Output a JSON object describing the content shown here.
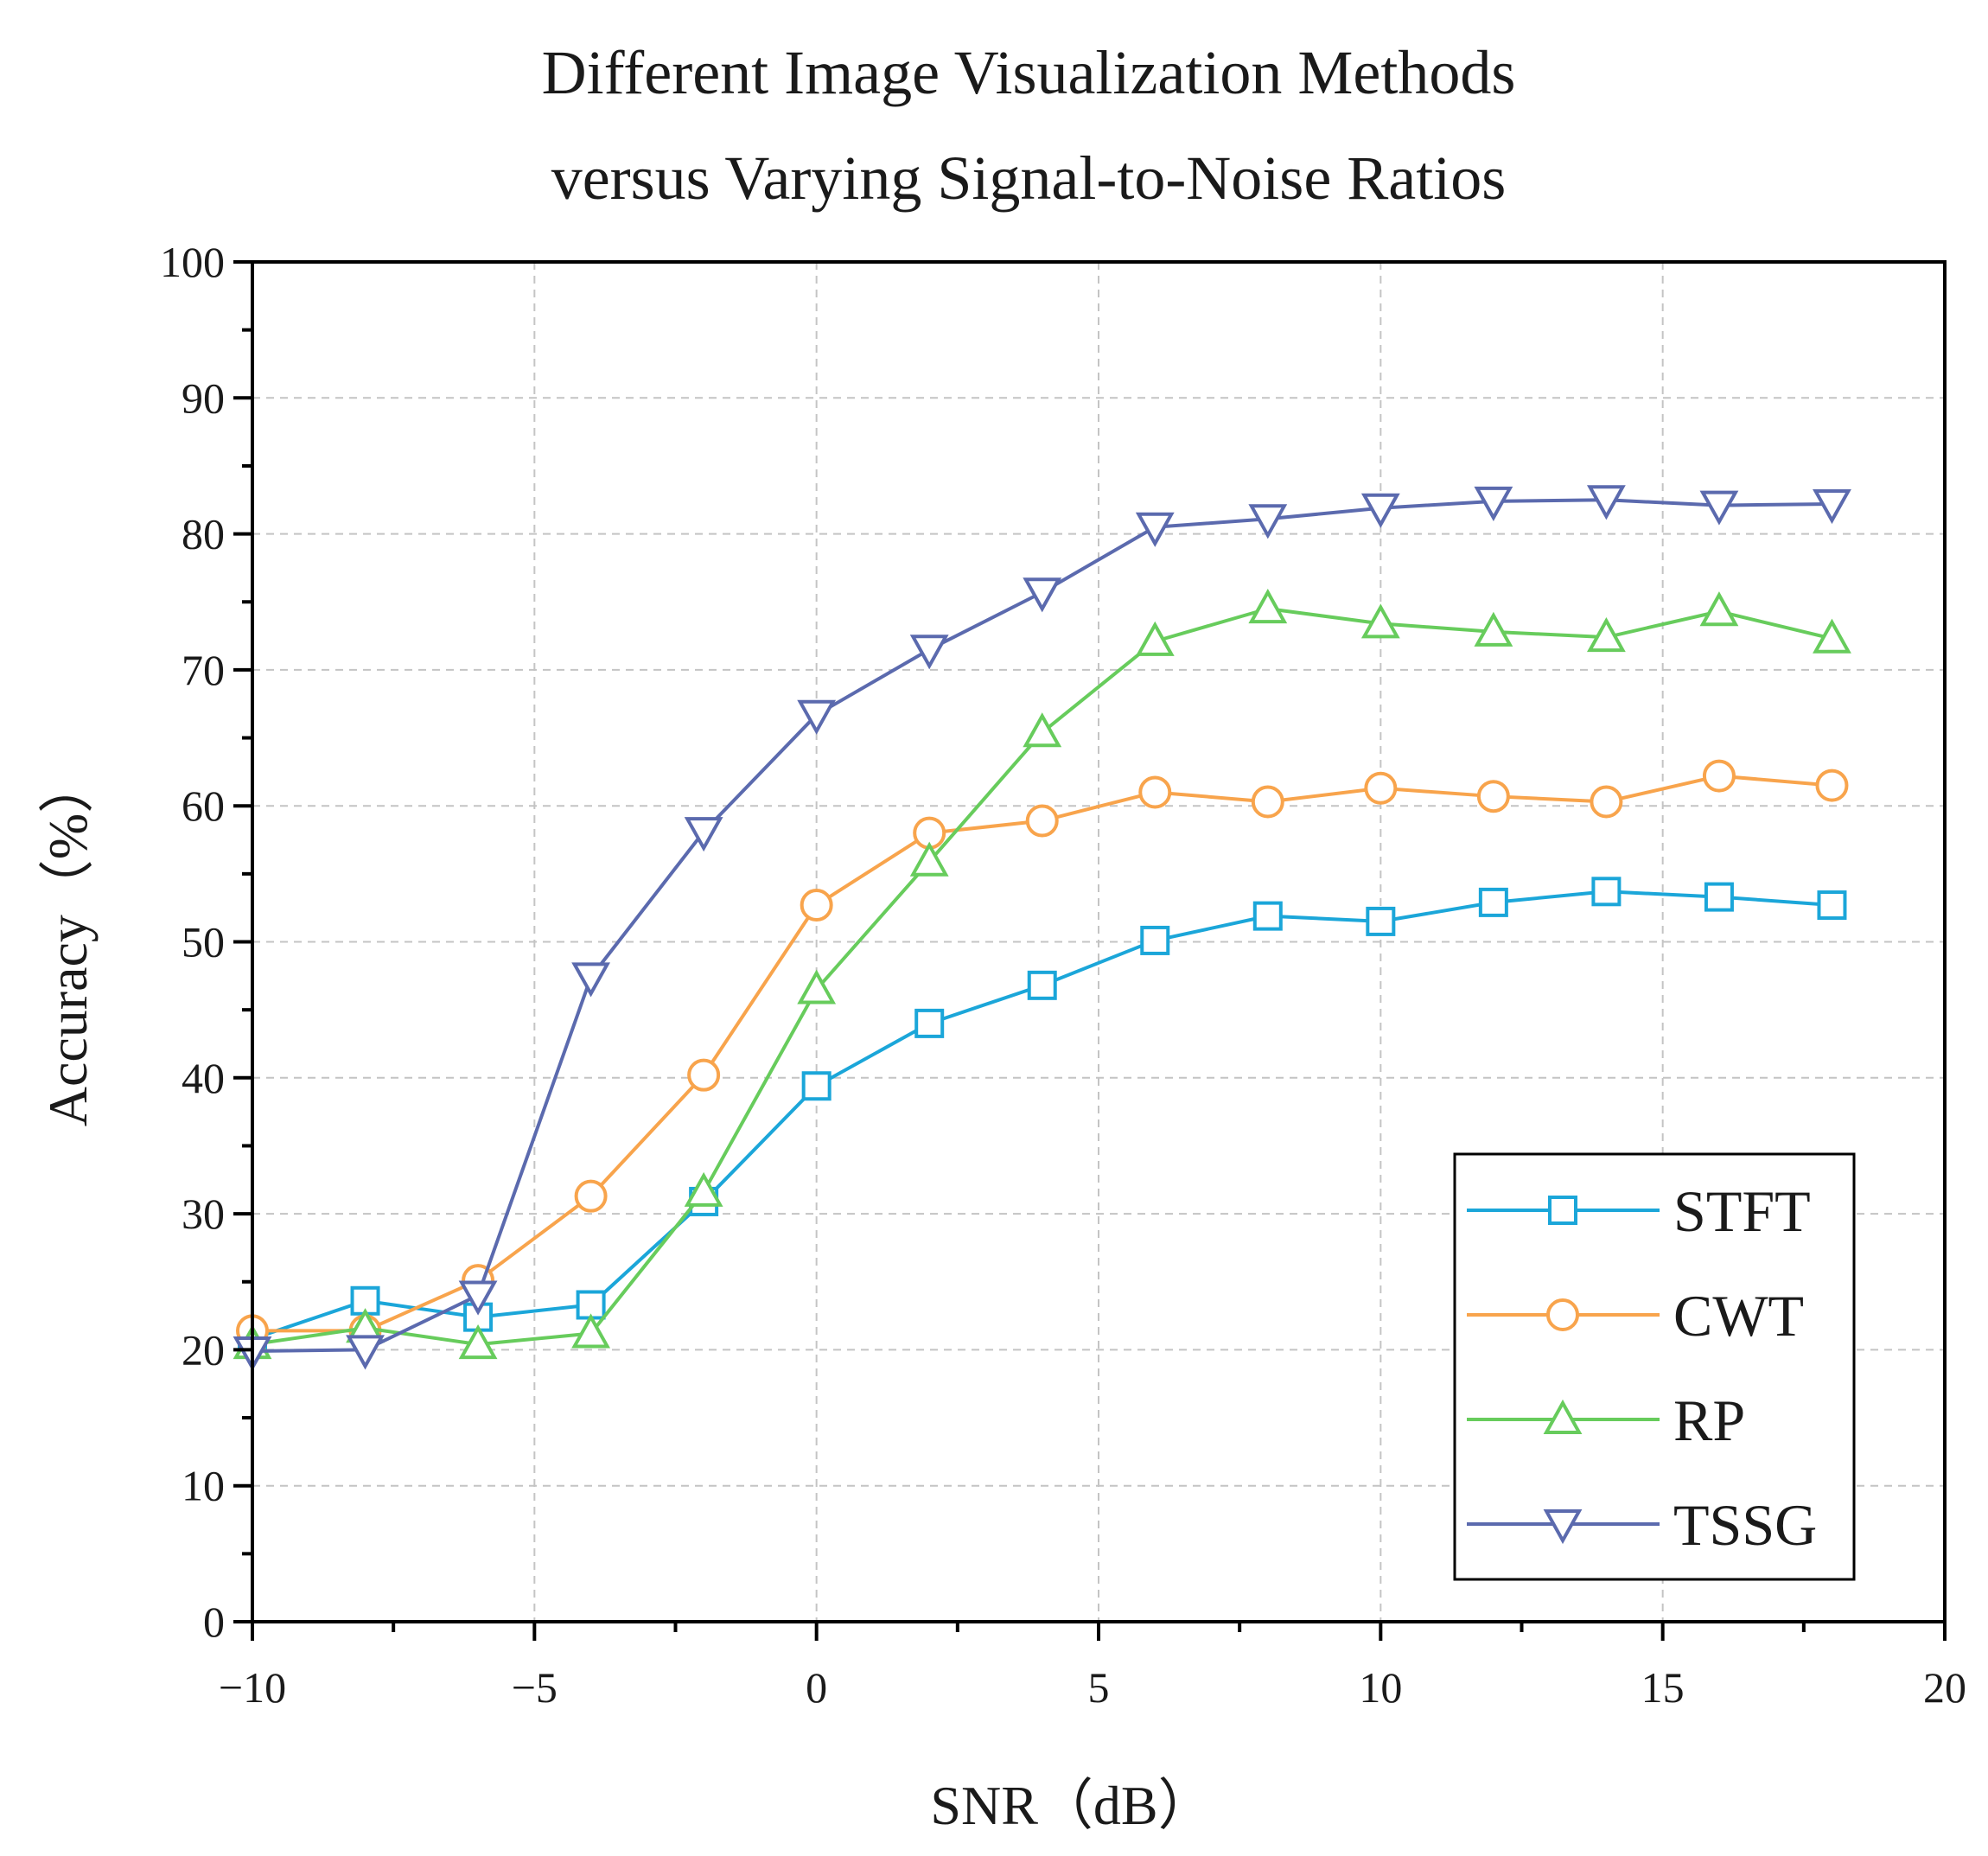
{
  "chart_data": {
    "type": "line",
    "title_lines": [
      "Different Image Visualization Methods",
      "versus Varying Signal-to-Noise Ratios"
    ],
    "xlabel": "SNR（dB）",
    "ylabel": "Accuracy（%）",
    "xlim": [
      -10,
      20
    ],
    "ylim": [
      0,
      100
    ],
    "xticks": [
      -10,
      -5,
      0,
      5,
      10,
      15,
      20
    ],
    "xtick_labels": [
      "−10",
      "−5",
      "0",
      "5",
      "10",
      "15",
      "20"
    ],
    "yticks": [
      0,
      10,
      20,
      30,
      40,
      50,
      60,
      70,
      80,
      90,
      100
    ],
    "ytick_labels": [
      "0",
      "10",
      "20",
      "30",
      "40",
      "50",
      "60",
      "70",
      "80",
      "90",
      "100"
    ],
    "grid": true,
    "legend_position": "bottom-right",
    "x": [
      -10,
      -8,
      -6,
      -4,
      -2,
      0,
      2,
      4,
      6,
      8,
      10,
      12,
      14,
      16,
      18
    ],
    "series": [
      {
        "name": "STFT",
        "marker": "square",
        "color": "#1BA6D9",
        "values": [
          20.8,
          23.6,
          22.4,
          23.3,
          30.9,
          39.4,
          44.0,
          46.8,
          50.1,
          51.9,
          51.5,
          52.9,
          53.7,
          53.3,
          52.7
        ]
      },
      {
        "name": "CWT",
        "marker": "circle",
        "color": "#F8A44C",
        "values": [
          21.4,
          21.4,
          25.1,
          31.3,
          40.2,
          52.7,
          58.0,
          58.9,
          61.0,
          60.3,
          61.3,
          60.7,
          60.3,
          62.2,
          61.5
        ]
      },
      {
        "name": "RP",
        "marker": "triangle-up",
        "color": "#67CC5C",
        "values": [
          20.4,
          21.6,
          20.4,
          21.2,
          31.6,
          46.5,
          55.9,
          65.4,
          72.1,
          74.5,
          73.4,
          72.8,
          72.4,
          74.3,
          72.3
        ]
      },
      {
        "name": "TSSG",
        "marker": "triangle-down",
        "color": "#5B6AAE",
        "values": [
          19.9,
          20.0,
          24.0,
          47.4,
          58.1,
          66.7,
          71.5,
          75.7,
          80.5,
          81.1,
          81.9,
          82.4,
          82.5,
          82.1,
          82.2
        ]
      }
    ]
  }
}
